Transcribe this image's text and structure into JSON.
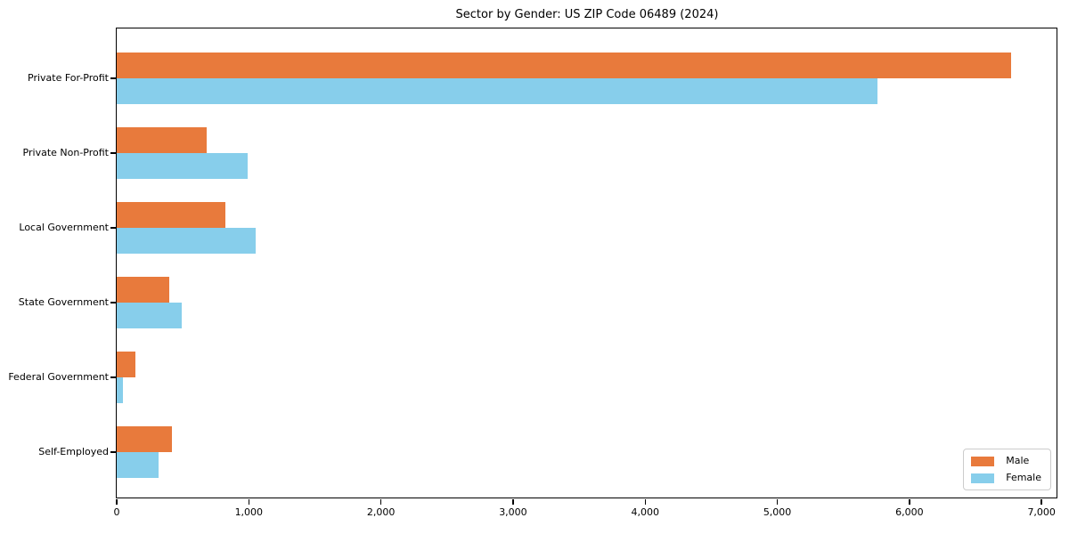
{
  "title": "Sector by Gender: US ZIP Code 06489 (2024)",
  "colors": {
    "male": "#e87a3c",
    "female": "#87ceeb",
    "axis": "#000000",
    "legend_border": "#cccccc",
    "background": "#ffffff"
  },
  "legend": {
    "items": [
      {
        "label": "Male",
        "color": "#e87a3c"
      },
      {
        "label": "Female",
        "color": "#87ceeb"
      }
    ],
    "position": "lower right"
  },
  "chart_data": {
    "type": "bar",
    "orientation": "horizontal",
    "title": "Sector by Gender: US ZIP Code 06489 (2024)",
    "xlabel": "",
    "ylabel": "",
    "categories": [
      "Private For-Profit",
      "Private Non-Profit",
      "Local Government",
      "State Government",
      "Federal Government",
      "Self-Employed"
    ],
    "series": [
      {
        "name": "Male",
        "color": "#e87a3c",
        "values": [
          6770,
          680,
          820,
          400,
          140,
          420
        ]
      },
      {
        "name": "Female",
        "color": "#87ceeb",
        "values": [
          5760,
          990,
          1050,
          490,
          50,
          320
        ]
      }
    ],
    "xlim": [
      0,
      7120
    ],
    "xticks": [
      0,
      1000,
      2000,
      3000,
      4000,
      5000,
      6000,
      7000
    ],
    "xtick_labels": [
      "0",
      "1,000",
      "2,000",
      "3,000",
      "4,000",
      "5,000",
      "6,000",
      "7,000"
    ],
    "grid": false,
    "legend_position": "lower right"
  }
}
